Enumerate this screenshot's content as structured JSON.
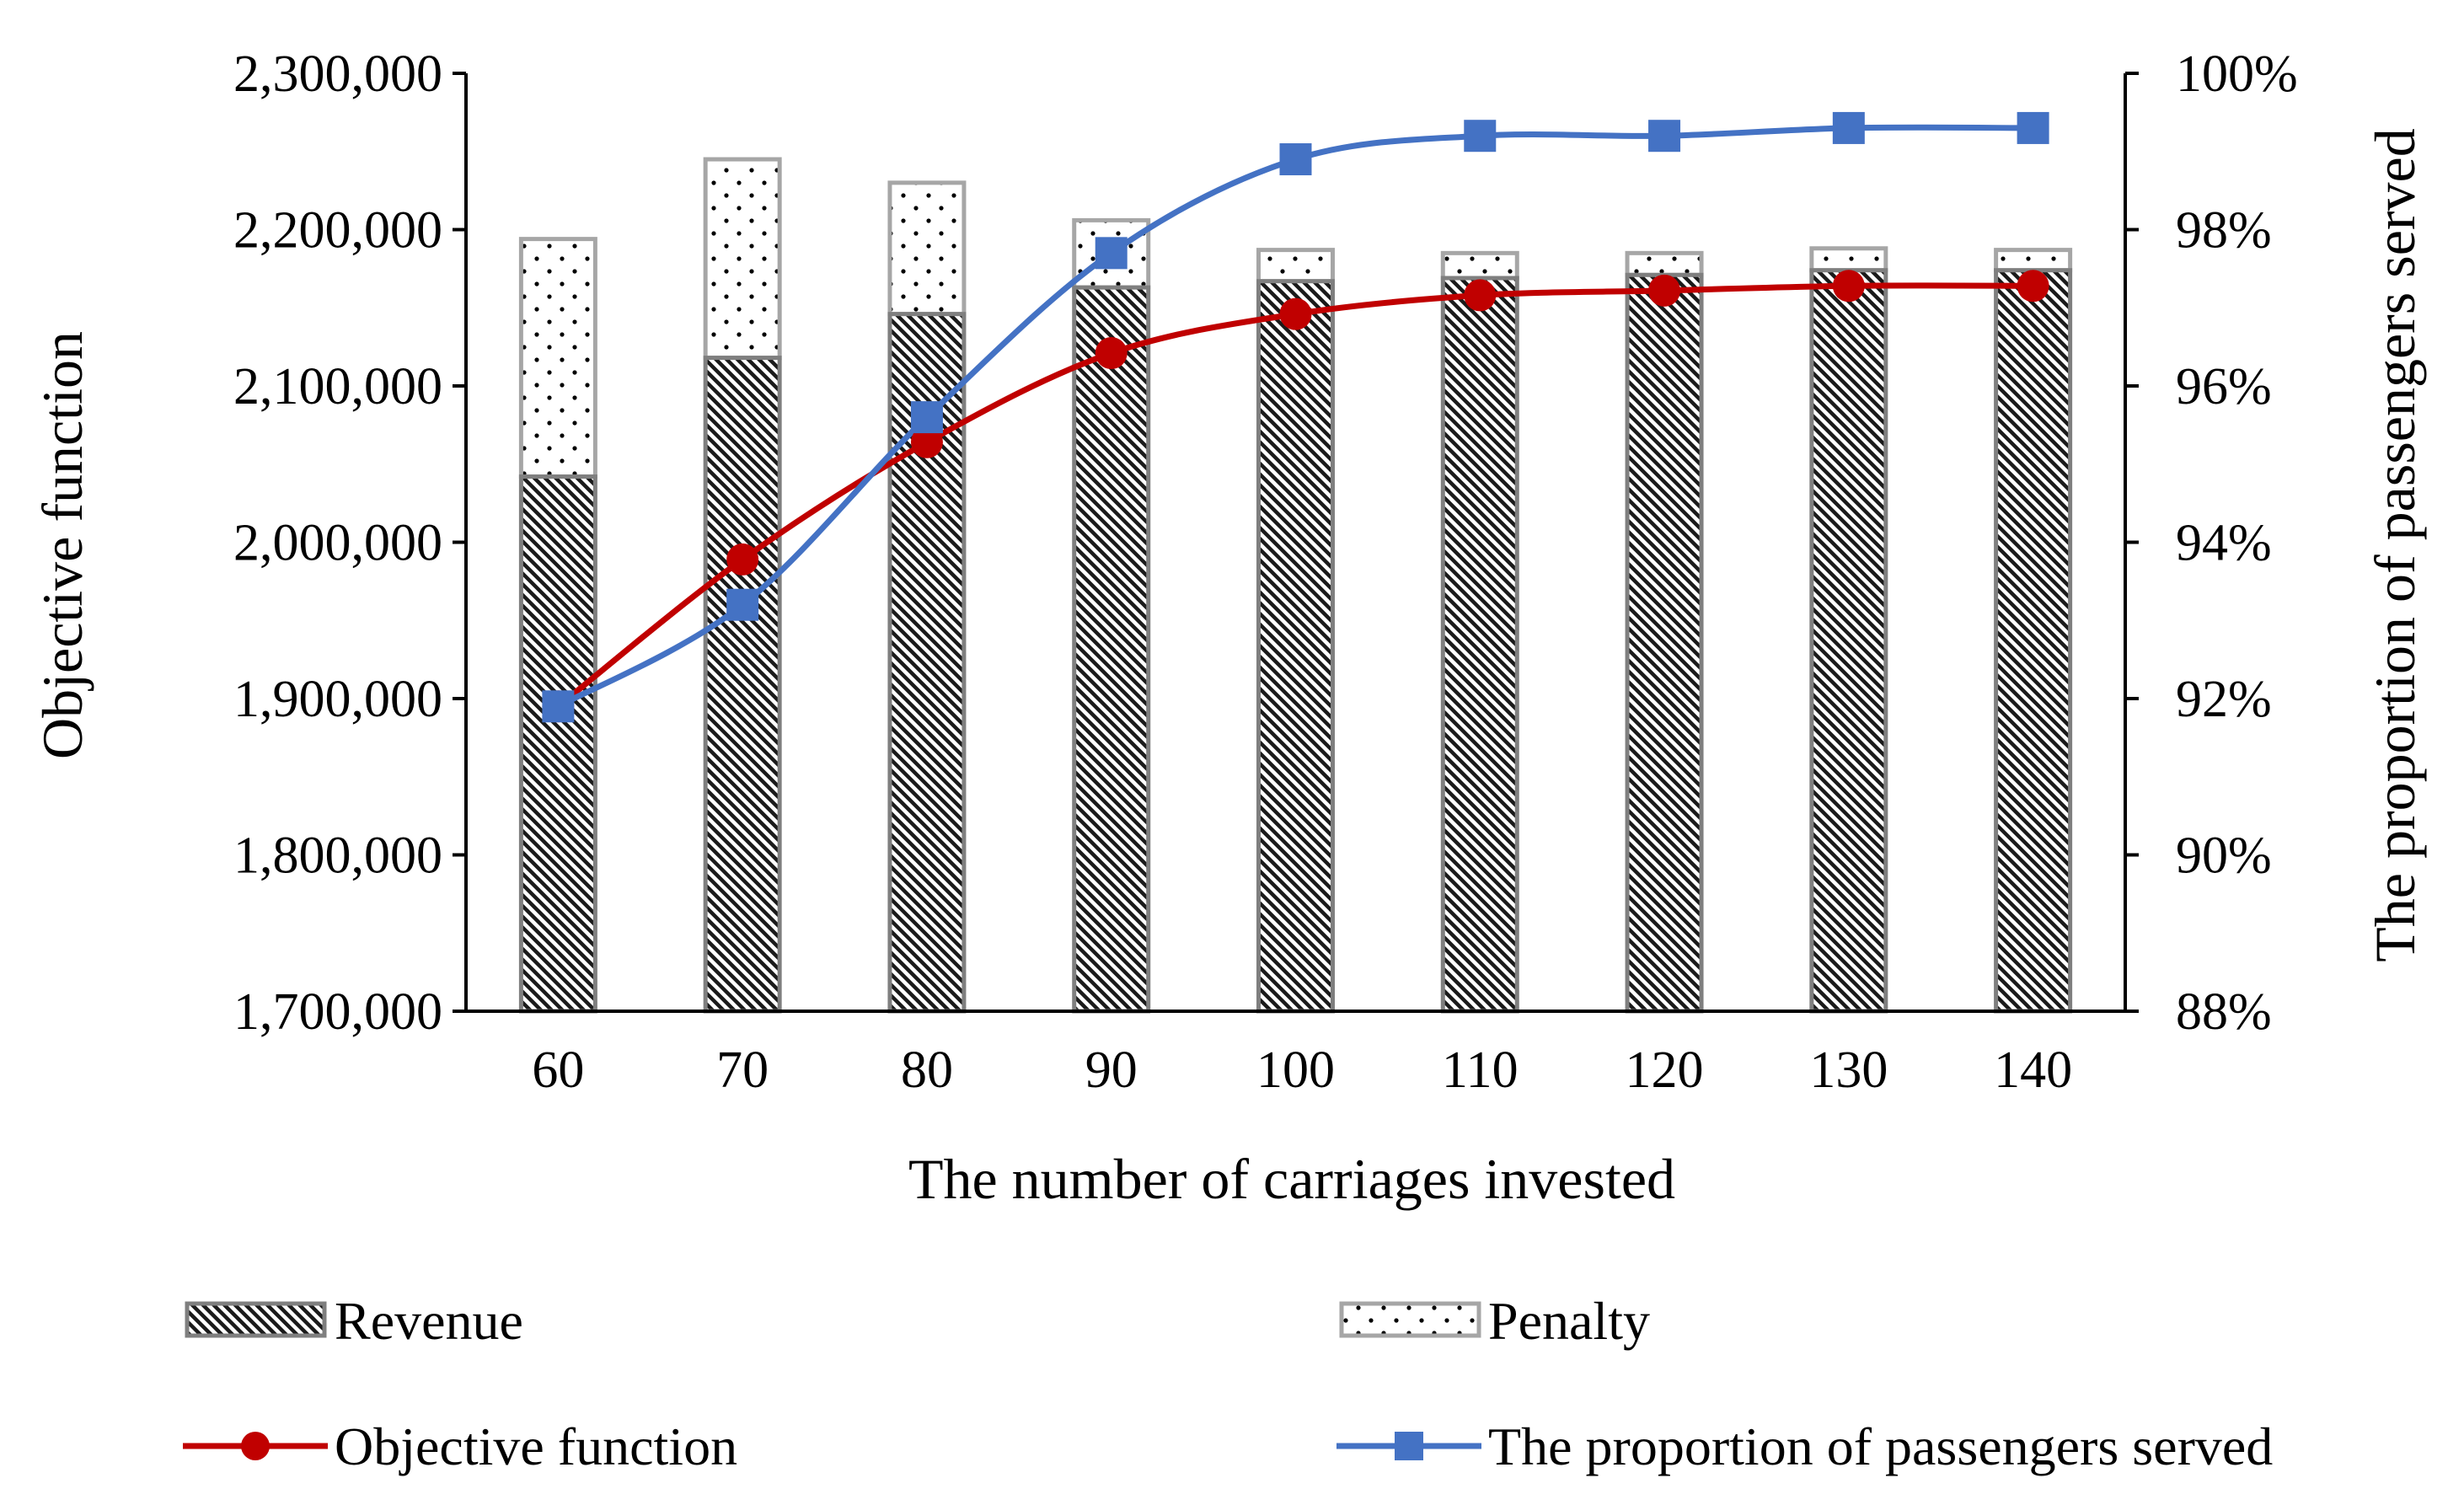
{
  "chart_data": {
    "type": "bar",
    "title": "",
    "xlabel": "The number of carriages invested",
    "ylabel": "Objective function",
    "y2label": "The proportion of passengers served",
    "categories": [
      "60",
      "70",
      "80",
      "90",
      "100",
      "110",
      "120",
      "130",
      "140"
    ],
    "ylim": [
      1700000,
      2300000
    ],
    "y_ticks": [
      1700000,
      1800000,
      1900000,
      2000000,
      2100000,
      2200000,
      2300000
    ],
    "y_tick_labels": [
      "1,700,000",
      "1,800,000",
      "1,900,000",
      "2,000,000",
      "2,100,000",
      "2,200,000",
      "2,300,000"
    ],
    "y2lim": [
      0.88,
      1.0
    ],
    "y2_ticks": [
      0.88,
      0.9,
      0.92,
      0.94,
      0.96,
      0.98,
      1.0
    ],
    "y2_tick_labels": [
      "88%",
      "90%",
      "92%",
      "94%",
      "96%",
      "98%",
      "100%"
    ],
    "grid": false,
    "legend_position": "bottom",
    "series": [
      {
        "name": "Revenue",
        "kind": "stacked-bar",
        "pattern": "diagonal-hatch",
        "values": [
          2042000,
          2118000,
          2146000,
          2163000,
          2167000,
          2169000,
          2171000,
          2174000,
          2174000
        ]
      },
      {
        "name": "Penalty",
        "kind": "stacked-bar",
        "pattern": "dots",
        "values": [
          152000,
          127000,
          84000,
          43000,
          20000,
          16000,
          14000,
          14000,
          13000
        ]
      },
      {
        "name": "Objective function",
        "kind": "line",
        "axis": "left",
        "color": "#c00000",
        "marker": "circle",
        "values": [
          1895000,
          1989000,
          2064000,
          2121000,
          2146000,
          2158000,
          2161000,
          2164000,
          2164000
        ]
      },
      {
        "name": "The proportion of passengers served",
        "kind": "line",
        "axis": "right",
        "color": "#4472c4",
        "marker": "square",
        "values": [
          0.919,
          0.932,
          0.956,
          0.977,
          0.989,
          0.992,
          0.992,
          0.993,
          0.993
        ]
      }
    ]
  }
}
